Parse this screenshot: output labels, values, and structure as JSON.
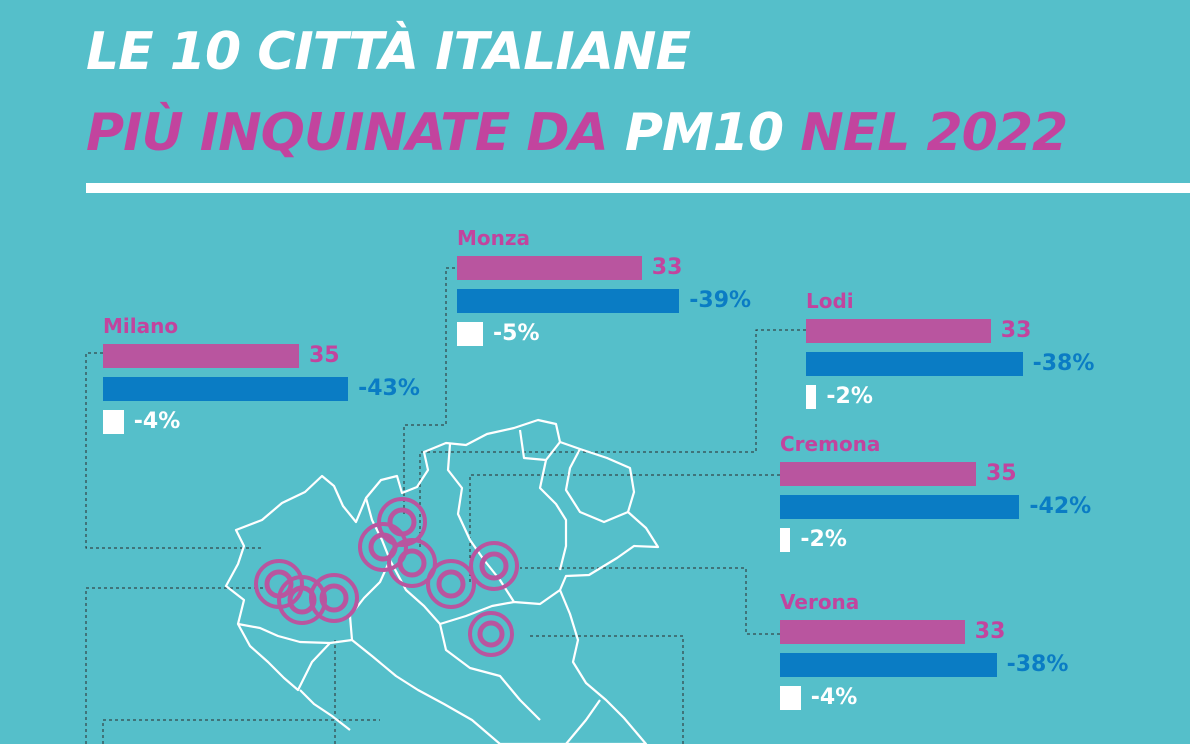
{
  "title": {
    "line1": "LE 10 CITTÀ ITALIANE",
    "line2_part1": "PIÙ INQUINATE DA",
    "line2_highlight": "PM10",
    "line2_part2": "NEL 2022"
  },
  "colors": {
    "background": "#55bfca",
    "pink": "#b9559f",
    "blue": "#0a7cc4",
    "white": "#ffffff"
  },
  "chart_data": {
    "type": "bar",
    "scale_note": "",
    "series": [
      {
        "name": "",
        "color": "#b9559f"
      },
      {
        "name": "",
        "color": "#0a7cc4"
      },
      {
        "name": "",
        "color": "#ffffff"
      }
    ],
    "cities": [
      {
        "name": "Milano",
        "value": "35",
        "v": 35,
        "change_blue": "-43%",
        "b": 43,
        "change_white": "-4%",
        "w": 4
      },
      {
        "name": "Monza",
        "value": "33",
        "v": 33,
        "change_blue": "-39%",
        "b": 39,
        "change_white": "-5%",
        "w": 5
      },
      {
        "name": "Lodi",
        "value": "33",
        "v": 33,
        "change_blue": "-38%",
        "b": 38,
        "change_white": "-2%",
        "w": 2
      },
      {
        "name": "Cremona",
        "value": "35",
        "v": 35,
        "change_blue": "-42%",
        "b": 42,
        "change_white": "-2%",
        "w": 2
      },
      {
        "name": "Verona",
        "value": "33",
        "v": 33,
        "change_blue": "-38%",
        "b": 38,
        "change_white": "-4%",
        "w": 4
      }
    ]
  }
}
